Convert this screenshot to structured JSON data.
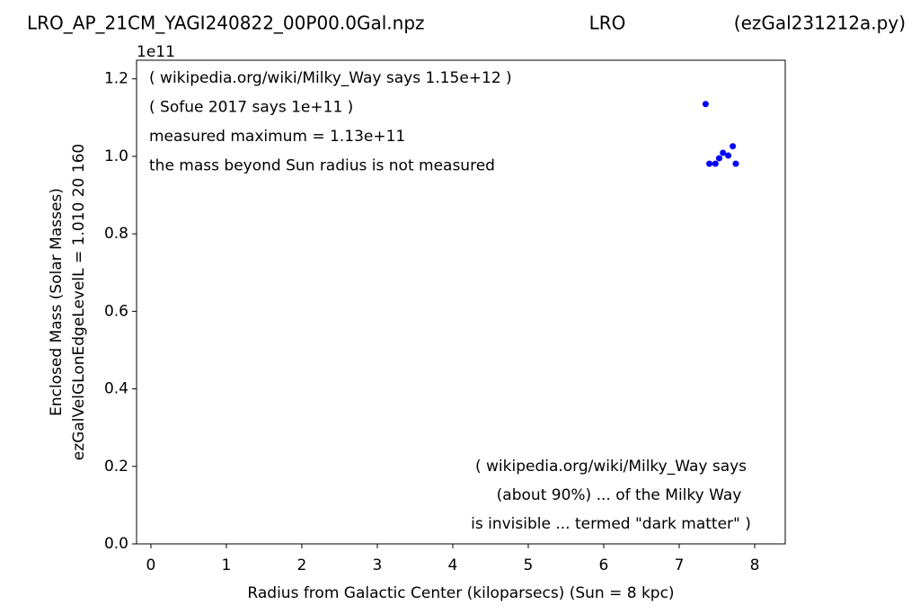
{
  "chart_data": {
    "type": "scatter",
    "title": "LRO_AP_21CM_YAGI240822_00P00.0Gal.npz",
    "title_center": "LRO",
    "title_right": "(ezGal231212a.py)",
    "x_label": "Radius from Galactic Center (kiloparsecs)  (Sun = 8 kpc)",
    "y_label": [
      "Enclosed Mass (Solar Masses)",
      "ezGalVelGLonEdgeLevelL = 1.010  20  160"
    ],
    "y_offset_label": "1e11",
    "annotations_top": [
      "( wikipedia.org/wiki/Milky_Way says 1.15e+12 )",
      "( Sofue 2017 says 1e+11 )",
      "measured maximum = 1.13e+11",
      "the mass beyond Sun radius is not measured"
    ],
    "annotations_bottom": [
      "( wikipedia.org/wiki/Milky_Way says",
      "(about 90%) ... of the Milky Way",
      "is invisible ... termed \"dark matter\" )"
    ],
    "x": [
      7.35,
      7.4,
      7.48,
      7.53,
      7.58,
      7.65,
      7.71,
      7.75
    ],
    "values": [
      1.135,
      0.981,
      0.981,
      0.995,
      1.009,
      1.002,
      1.026,
      0.981
    ],
    "color": "#0000ff",
    "xlim": [
      -0.19,
      8.405
    ],
    "ylim": [
      0,
      1.248
    ],
    "xticks": [
      0,
      1,
      2,
      3,
      4,
      5,
      6,
      7,
      8
    ],
    "yticks": [
      {
        "value": 0,
        "label": "0.0"
      },
      0.2,
      0.4,
      0.6,
      0.8,
      {
        "value": 1,
        "label": "1.0"
      },
      1.2
    ],
    "grid": false
  }
}
